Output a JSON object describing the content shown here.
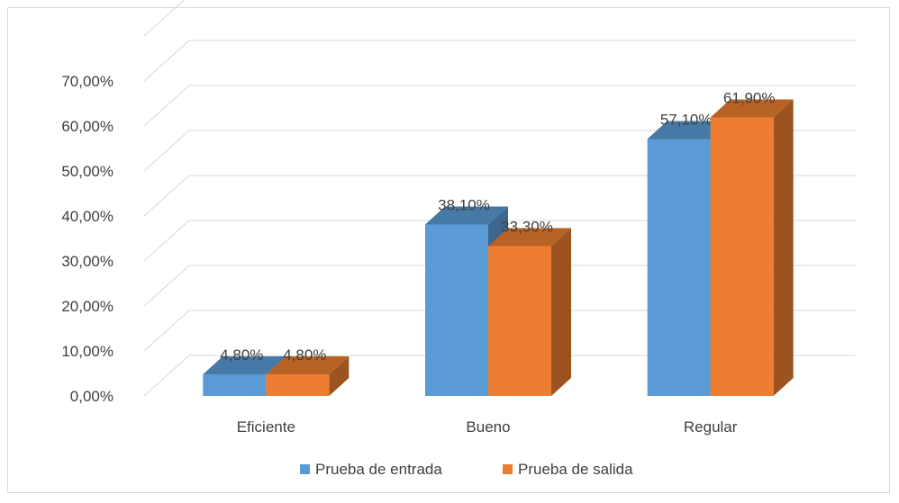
{
  "chart_data": {
    "type": "bar",
    "categories": [
      "Eficiente",
      "Bueno",
      "Regular"
    ],
    "series": [
      {
        "name": "Prueba de entrada",
        "values": [
          4.8,
          38.1,
          57.1
        ],
        "labels": [
          "4,80%",
          "38,10%",
          "57,10%"
        ],
        "color": "#5b9bd5"
      },
      {
        "name": "Prueba de salida",
        "values": [
          4.8,
          33.3,
          61.9
        ],
        "labels": [
          "4,80%",
          "33,30%",
          "61,90%"
        ],
        "color": "#ed7d31"
      }
    ],
    "y_ticks": [
      "0,00%",
      "10,00%",
      "20,00%",
      "30,00%",
      "40,00%",
      "50,00%",
      "60,00%",
      "70,00%"
    ],
    "ylim": [
      0,
      80
    ],
    "grid": true,
    "legend_position": "bottom",
    "style": "3d-clustered-column"
  }
}
